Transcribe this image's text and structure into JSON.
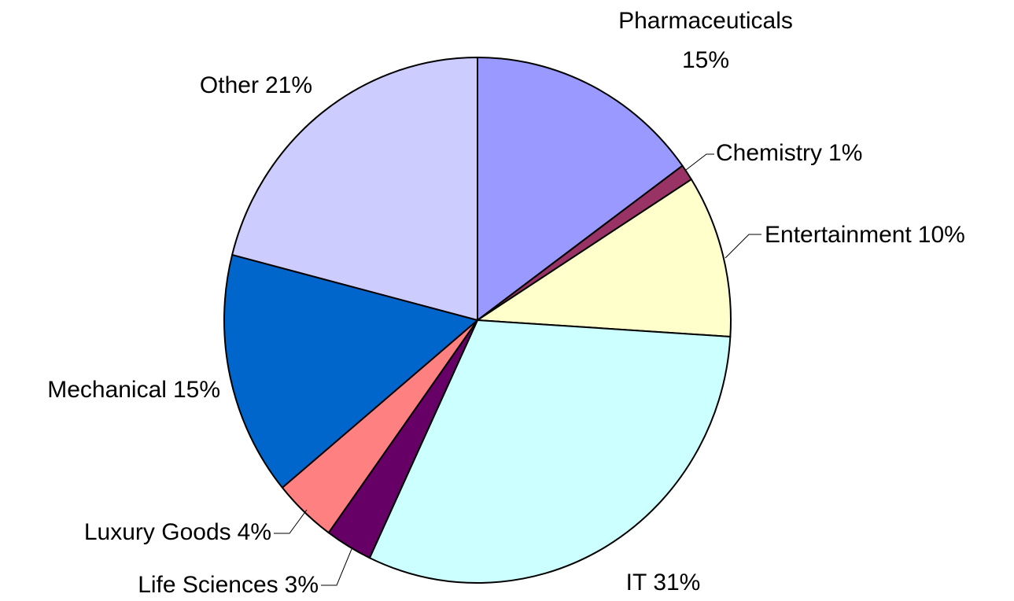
{
  "chart_data": {
    "type": "pie",
    "categories": [
      "Pharmaceuticals",
      "Chemistry",
      "Entertainment",
      "IT",
      "Life Sciences",
      "Luxury Goods",
      "Mechanical",
      "Other"
    ],
    "values": [
      15,
      1,
      10,
      31,
      3,
      4,
      15,
      21
    ],
    "value_labels": [
      "15%",
      "1%",
      "10%",
      "31%",
      "3%",
      "4%",
      "15%",
      "21%"
    ],
    "colors": [
      "#9999ff",
      "#993366",
      "#ffffcc",
      "#ccffff",
      "#660066",
      "#ff8080",
      "#0066cc",
      "#ccccff"
    ]
  }
}
